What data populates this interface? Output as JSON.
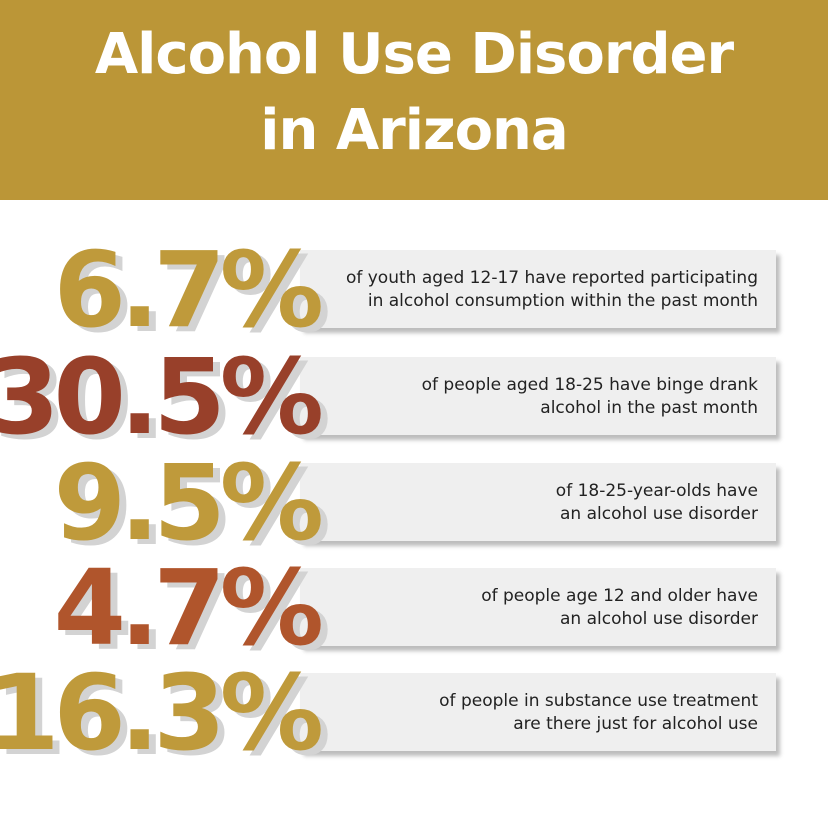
{
  "header": {
    "title_lines": [
      "Alcohol Use Disorder",
      "in Arizona"
    ]
  },
  "stats": [
    {
      "figure": "6.7%",
      "color": "#bf9a3b",
      "description_lines": [
        "of youth aged 12-17 have reported participating",
        "in alcohol consumption within the past month"
      ]
    },
    {
      "figure": "30.5%",
      "color": "#98402a",
      "description_lines": [
        "of people aged 18-25 have binge drank",
        "alcohol in the past month"
      ]
    },
    {
      "figure": "9.5%",
      "color": "#bf9a3b",
      "description_lines": [
        "of 18-25-year-olds have",
        "an alcohol use disorder"
      ]
    },
    {
      "figure": "4.7%",
      "color": "#b0552c",
      "description_lines": [
        "of people age 12 and older have",
        "an alcohol use disorder"
      ]
    },
    {
      "figure": "16.3%",
      "color": "#bf9a3b",
      "description_lines": [
        "of people in substance use treatment",
        "are there just for alcohol use"
      ]
    }
  ]
}
